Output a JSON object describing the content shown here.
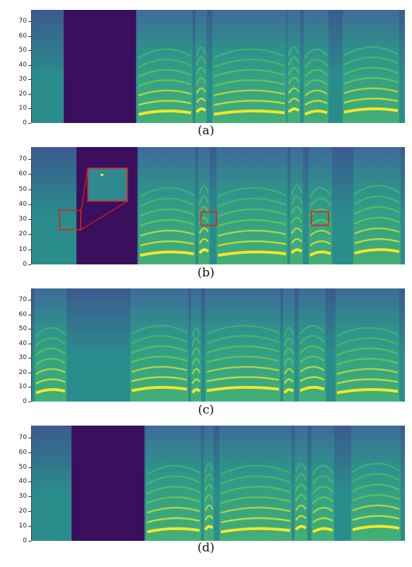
{
  "chart_data": [
    {
      "type": "heatmap",
      "label": "(a)",
      "ylim": [
        0,
        78
      ],
      "yticks": [
        0,
        10,
        20,
        30,
        40,
        50,
        60,
        70
      ],
      "colormap": "viridis",
      "silence_band": true,
      "zoom_boxes": [],
      "zoom_inset": false
    },
    {
      "type": "heatmap",
      "label": "(b)",
      "ylim": [
        0,
        78
      ],
      "yticks": [
        0,
        10,
        20,
        30,
        40,
        50,
        60,
        70
      ],
      "colormap": "viridis",
      "silence_band": true,
      "zoom_boxes": [
        {
          "y_range": [
            23,
            36
          ]
        },
        {
          "y_range": [
            26,
            35
          ]
        },
        {
          "y_range": [
            26,
            35
          ]
        }
      ],
      "zoom_inset": true
    },
    {
      "type": "heatmap",
      "label": "(c)",
      "ylim": [
        0,
        78
      ],
      "yticks": [
        0,
        10,
        20,
        30,
        40,
        50,
        60,
        70
      ],
      "colormap": "viridis",
      "silence_band": false,
      "zoom_boxes": [],
      "zoom_inset": false
    },
    {
      "type": "heatmap",
      "label": "(d)",
      "ylim": [
        0,
        78
      ],
      "yticks": [
        0,
        10,
        20,
        30,
        40,
        50,
        60,
        70
      ],
      "colormap": "viridis",
      "silence_band": true,
      "zoom_boxes": [],
      "zoom_inset": false
    }
  ],
  "colors": {
    "silence": "#3a0f5e",
    "low": "#3b5a8f",
    "mid": "#2a8d8c",
    "high": "#7ad04f",
    "peak": "#f2e72b",
    "zoom_box": "#e0201c"
  }
}
